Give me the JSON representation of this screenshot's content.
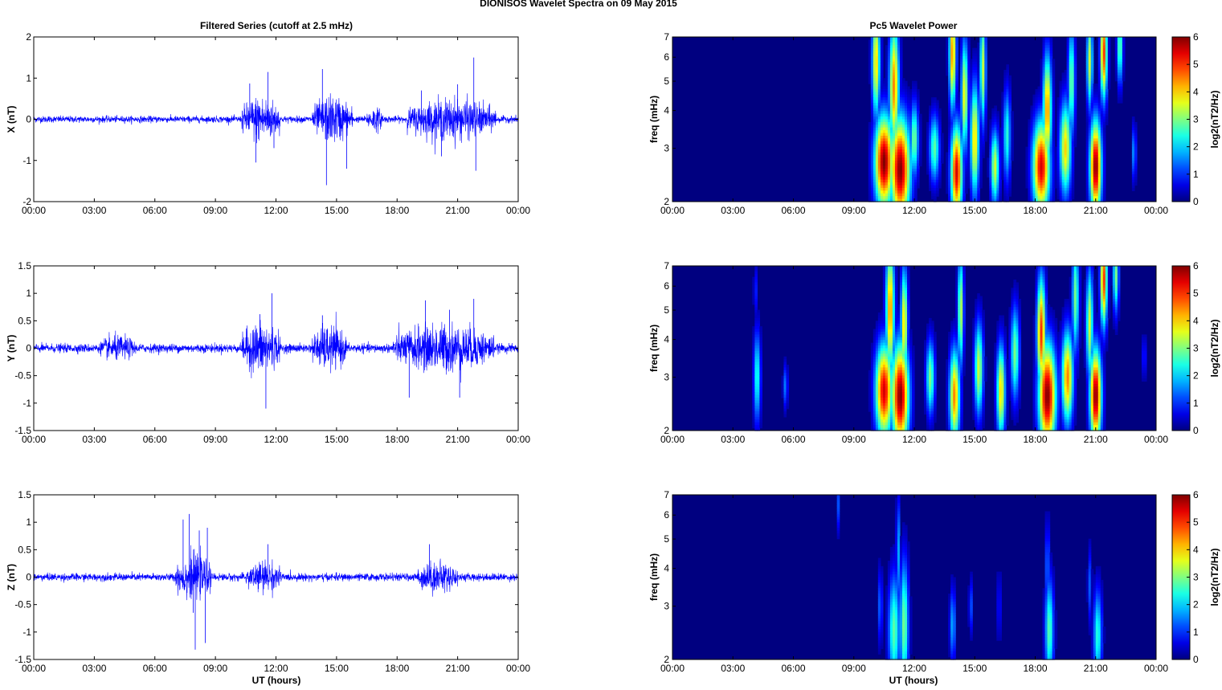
{
  "figure": {
    "title": "DIONISOS Wavelet Spectra on 09 May      2015"
  },
  "left_column": {
    "title": "Filtered Series (cutoff at 2.5 mHz)"
  },
  "right_column": {
    "title": "Pc5 Wavelet Power"
  },
  "xlabel": "UT (hours)",
  "x_tick_labels": [
    "00:00",
    "03:00",
    "06:00",
    "09:00",
    "12:00",
    "15:00",
    "18:00",
    "21:00",
    "00:00"
  ],
  "chart_data": [
    {
      "type": "line",
      "name": "series-x",
      "ylabel": "X (nT)",
      "xlim": [
        0,
        24
      ],
      "ylim": [
        -2,
        2
      ],
      "y_ticks": [
        "-2",
        "-1",
        "0",
        "1",
        "2"
      ],
      "y_tick_values": [
        -2,
        -1,
        0,
        1,
        2
      ],
      "color": "#0000ff",
      "base_amplitude": 0.07,
      "activity": [
        {
          "start": 10.3,
          "end": 12.2,
          "amp": 0.45
        },
        {
          "start": 13.8,
          "end": 15.8,
          "amp": 0.45
        },
        {
          "start": 16.5,
          "end": 17.3,
          "amp": 0.2
        },
        {
          "start": 18.5,
          "end": 22.9,
          "amp": 0.38
        }
      ],
      "peaks": [
        {
          "x": 10.7,
          "y": 0.87
        },
        {
          "x": 11.0,
          "y": -1.05
        },
        {
          "x": 11.6,
          "y": 1.15
        },
        {
          "x": 11.9,
          "y": -0.7
        },
        {
          "x": 14.3,
          "y": 1.22
        },
        {
          "x": 14.5,
          "y": -1.6
        },
        {
          "x": 15.5,
          "y": -1.2
        },
        {
          "x": 19.2,
          "y": 0.7
        },
        {
          "x": 20.2,
          "y": -0.9
        },
        {
          "x": 21.0,
          "y": 0.85
        },
        {
          "x": 21.8,
          "y": 1.5
        },
        {
          "x": 21.9,
          "y": -1.25
        }
      ]
    },
    {
      "type": "line",
      "name": "series-y",
      "ylabel": "Y (nT)",
      "xlim": [
        0,
        24
      ],
      "ylim": [
        -1.5,
        1.5
      ],
      "y_ticks": [
        "-1.5",
        "-1",
        "-0.5",
        "0",
        "0.5",
        "1",
        "1.5"
      ],
      "y_tick_values": [
        -1.5,
        -1,
        -0.5,
        0,
        0.5,
        1,
        1.5
      ],
      "color": "#0000ff",
      "base_amplitude": 0.07,
      "activity": [
        {
          "start": 3.3,
          "end": 5.0,
          "amp": 0.14
        },
        {
          "start": 10.3,
          "end": 12.2,
          "amp": 0.36
        },
        {
          "start": 13.8,
          "end": 15.5,
          "amp": 0.3
        },
        {
          "start": 17.8,
          "end": 22.8,
          "amp": 0.33
        }
      ],
      "peaks": [
        {
          "x": 11.2,
          "y": 0.62
        },
        {
          "x": 11.5,
          "y": -1.1
        },
        {
          "x": 11.8,
          "y": 1.0
        },
        {
          "x": 14.3,
          "y": 0.6
        },
        {
          "x": 18.6,
          "y": -0.9
        },
        {
          "x": 19.4,
          "y": 0.87
        },
        {
          "x": 20.6,
          "y": 0.7
        },
        {
          "x": 21.1,
          "y": -0.9
        },
        {
          "x": 21.8,
          "y": 0.9
        }
      ]
    },
    {
      "type": "line",
      "name": "series-z",
      "ylabel": "Z (nT)",
      "xlim": [
        0,
        24
      ],
      "ylim": [
        -1.5,
        1.5
      ],
      "y_ticks": [
        "-1.5",
        "-1",
        "-0.5",
        "0",
        "0.5",
        "1",
        "1.5"
      ],
      "y_tick_values": [
        -1.5,
        -1,
        -0.5,
        0,
        0.5,
        1,
        1.5
      ],
      "color": "#0000ff",
      "base_amplitude": 0.06,
      "activity": [
        {
          "start": 7.0,
          "end": 8.8,
          "amp": 0.3
        },
        {
          "start": 10.5,
          "end": 12.3,
          "amp": 0.2
        },
        {
          "start": 19.0,
          "end": 21.0,
          "amp": 0.2
        }
      ],
      "peaks": [
        {
          "x": 7.4,
          "y": 1.05
        },
        {
          "x": 7.7,
          "y": 1.15
        },
        {
          "x": 7.9,
          "y": -0.65
        },
        {
          "x": 8.0,
          "y": -1.32
        },
        {
          "x": 8.2,
          "y": 0.85
        },
        {
          "x": 8.5,
          "y": -1.2
        },
        {
          "x": 8.6,
          "y": 0.9
        },
        {
          "x": 11.6,
          "y": 0.6
        },
        {
          "x": 19.6,
          "y": 0.6
        }
      ]
    },
    {
      "type": "heatmap",
      "name": "wavelet-x",
      "ylabel": "freq (mHz)",
      "xlim": [
        0,
        24
      ],
      "ylim": [
        2,
        7
      ],
      "y_scale": "log",
      "y_ticks": [
        "2",
        "3",
        "4",
        "5",
        "6",
        "7"
      ],
      "y_tick_values": [
        2,
        3,
        4,
        5,
        6,
        7
      ],
      "colorbar": {
        "label": "log2(nT2/Hz)",
        "range": [
          0,
          6
        ],
        "ticks": [
          "0",
          "1",
          "2",
          "3",
          "4",
          "5",
          "6"
        ],
        "colormap": "jet"
      },
      "blobs": [
        {
          "t": 10.5,
          "f": 2.7,
          "sx": 0.33,
          "sy": 0.25,
          "v": 6.0
        },
        {
          "t": 11.3,
          "f": 2.55,
          "sx": 0.35,
          "sy": 0.28,
          "v": 6.0
        },
        {
          "t": 11.0,
          "f": 4.8,
          "sx": 0.17,
          "sy": 0.35,
          "v": 4.5
        },
        {
          "t": 10.1,
          "f": 5.8,
          "sx": 0.14,
          "sy": 0.3,
          "v": 4.0
        },
        {
          "t": 12.0,
          "f": 3.2,
          "sx": 0.15,
          "sy": 0.2,
          "v": 3.0
        },
        {
          "t": 13.0,
          "f": 3.0,
          "sx": 0.18,
          "sy": 0.18,
          "v": 2.8
        },
        {
          "t": 14.1,
          "f": 2.5,
          "sx": 0.2,
          "sy": 0.25,
          "v": 5.5
        },
        {
          "t": 13.9,
          "f": 6.2,
          "sx": 0.12,
          "sy": 0.3,
          "v": 4.5
        },
        {
          "t": 14.5,
          "f": 4.5,
          "sx": 0.12,
          "sy": 0.3,
          "v": 3.8
        },
        {
          "t": 15.0,
          "f": 3.2,
          "sx": 0.15,
          "sy": 0.3,
          "v": 4.0
        },
        {
          "t": 15.4,
          "f": 5.5,
          "sx": 0.1,
          "sy": 0.3,
          "v": 3.5
        },
        {
          "t": 16.0,
          "f": 2.6,
          "sx": 0.15,
          "sy": 0.2,
          "v": 3.5
        },
        {
          "t": 16.6,
          "f": 3.3,
          "sx": 0.13,
          "sy": 0.25,
          "v": 2.5
        },
        {
          "t": 18.3,
          "f": 2.6,
          "sx": 0.3,
          "sy": 0.25,
          "v": 5.5
        },
        {
          "t": 18.6,
          "f": 4.0,
          "sx": 0.15,
          "sy": 0.3,
          "v": 4.5
        },
        {
          "t": 19.5,
          "f": 3.0,
          "sx": 0.2,
          "sy": 0.25,
          "v": 4.0
        },
        {
          "t": 19.8,
          "f": 5.0,
          "sx": 0.12,
          "sy": 0.3,
          "v": 3.0
        },
        {
          "t": 21.0,
          "f": 2.6,
          "sx": 0.2,
          "sy": 0.25,
          "v": 6.0
        },
        {
          "t": 21.4,
          "f": 6.2,
          "sx": 0.12,
          "sy": 0.25,
          "v": 5.0
        },
        {
          "t": 20.7,
          "f": 5.8,
          "sx": 0.1,
          "sy": 0.25,
          "v": 3.5
        },
        {
          "t": 22.2,
          "f": 6.5,
          "sx": 0.1,
          "sy": 0.2,
          "v": 3.0
        },
        {
          "t": 22.9,
          "f": 2.9,
          "sx": 0.07,
          "sy": 0.15,
          "v": 1.8
        }
      ]
    },
    {
      "type": "heatmap",
      "name": "wavelet-y",
      "ylabel": "freq (mHz)",
      "xlim": [
        0,
        24
      ],
      "ylim": [
        2,
        7
      ],
      "y_scale": "log",
      "y_ticks": [
        "2",
        "3",
        "4",
        "5",
        "6",
        "7"
      ],
      "y_tick_values": [
        2,
        3,
        4,
        5,
        6,
        7
      ],
      "colorbar": {
        "label": "log2(nT2/Hz)",
        "range": [
          0,
          6
        ],
        "ticks": [
          "0",
          "1",
          "2",
          "3",
          "4",
          "5",
          "6"
        ],
        "colormap": "jet"
      },
      "blobs": [
        {
          "t": 4.2,
          "f": 3.0,
          "sx": 0.12,
          "sy": 0.25,
          "v": 2.5
        },
        {
          "t": 4.1,
          "f": 5.8,
          "sx": 0.05,
          "sy": 0.15,
          "v": 1.2
        },
        {
          "t": 5.6,
          "f": 2.8,
          "sx": 0.08,
          "sy": 0.12,
          "v": 1.5
        },
        {
          "t": 10.5,
          "f": 2.7,
          "sx": 0.3,
          "sy": 0.25,
          "v": 5.5
        },
        {
          "t": 11.3,
          "f": 2.6,
          "sx": 0.3,
          "sy": 0.28,
          "v": 6.0
        },
        {
          "t": 10.8,
          "f": 5.0,
          "sx": 0.15,
          "sy": 0.35,
          "v": 4.5
        },
        {
          "t": 11.5,
          "f": 4.5,
          "sx": 0.12,
          "sy": 0.3,
          "v": 4.0
        },
        {
          "t": 12.8,
          "f": 3.0,
          "sx": 0.15,
          "sy": 0.2,
          "v": 3.0
        },
        {
          "t": 14.0,
          "f": 2.6,
          "sx": 0.18,
          "sy": 0.25,
          "v": 4.5
        },
        {
          "t": 14.3,
          "f": 5.0,
          "sx": 0.1,
          "sy": 0.3,
          "v": 3.5
        },
        {
          "t": 15.2,
          "f": 3.2,
          "sx": 0.15,
          "sy": 0.25,
          "v": 3.5
        },
        {
          "t": 16.3,
          "f": 2.7,
          "sx": 0.15,
          "sy": 0.25,
          "v": 4.0
        },
        {
          "t": 17.0,
          "f": 3.6,
          "sx": 0.15,
          "sy": 0.25,
          "v": 3.0
        },
        {
          "t": 18.6,
          "f": 2.6,
          "sx": 0.3,
          "sy": 0.28,
          "v": 6.0
        },
        {
          "t": 18.3,
          "f": 4.2,
          "sx": 0.15,
          "sy": 0.3,
          "v": 5.0
        },
        {
          "t": 19.6,
          "f": 3.0,
          "sx": 0.2,
          "sy": 0.25,
          "v": 4.5
        },
        {
          "t": 20.0,
          "f": 5.5,
          "sx": 0.12,
          "sy": 0.3,
          "v": 3.0
        },
        {
          "t": 21.0,
          "f": 2.6,
          "sx": 0.2,
          "sy": 0.25,
          "v": 6.0
        },
        {
          "t": 21.4,
          "f": 6.3,
          "sx": 0.12,
          "sy": 0.25,
          "v": 5.0
        },
        {
          "t": 20.7,
          "f": 4.5,
          "sx": 0.12,
          "sy": 0.3,
          "v": 3.5
        },
        {
          "t": 22.0,
          "f": 6.5,
          "sx": 0.1,
          "sy": 0.2,
          "v": 3.0
        },
        {
          "t": 23.4,
          "f": 3.5,
          "sx": 0.06,
          "sy": 0.12,
          "v": 1.2
        }
      ]
    },
    {
      "type": "heatmap",
      "name": "wavelet-z",
      "ylabel": "freq (mHz)",
      "xlim": [
        0,
        24
      ],
      "ylim": [
        2,
        7
      ],
      "y_scale": "log",
      "y_ticks": [
        "2",
        "3",
        "4",
        "5",
        "6",
        "7"
      ],
      "y_tick_values": [
        2,
        3,
        4,
        5,
        6,
        7
      ],
      "colorbar": {
        "label": "log2(nT2/Hz)",
        "range": [
          0,
          6
        ],
        "ticks": [
          "0",
          "1",
          "2",
          "3",
          "4",
          "5",
          "6"
        ],
        "colormap": "jet"
      },
      "blobs": [
        {
          "t": 11.0,
          "f": 2.5,
          "sx": 0.2,
          "sy": 0.3,
          "v": 2.8
        },
        {
          "t": 11.5,
          "f": 2.6,
          "sx": 0.15,
          "sy": 0.35,
          "v": 3.0
        },
        {
          "t": 11.2,
          "f": 4.5,
          "sx": 0.07,
          "sy": 0.3,
          "v": 1.8
        },
        {
          "t": 8.2,
          "f": 6.5,
          "sx": 0.05,
          "sy": 0.15,
          "v": 1.3
        },
        {
          "t": 10.3,
          "f": 3.0,
          "sx": 0.08,
          "sy": 0.2,
          "v": 1.4
        },
        {
          "t": 13.9,
          "f": 2.6,
          "sx": 0.1,
          "sy": 0.2,
          "v": 1.8
        },
        {
          "t": 14.8,
          "f": 3.0,
          "sx": 0.07,
          "sy": 0.15,
          "v": 1.2
        },
        {
          "t": 16.2,
          "f": 3.0,
          "sx": 0.06,
          "sy": 0.2,
          "v": 1.0
        },
        {
          "t": 18.7,
          "f": 2.5,
          "sx": 0.15,
          "sy": 0.28,
          "v": 2.8
        },
        {
          "t": 18.6,
          "f": 4.0,
          "sx": 0.08,
          "sy": 0.25,
          "v": 1.5
        },
        {
          "t": 21.1,
          "f": 2.4,
          "sx": 0.15,
          "sy": 0.25,
          "v": 2.5
        },
        {
          "t": 20.7,
          "f": 3.5,
          "sx": 0.07,
          "sy": 0.2,
          "v": 1.3
        }
      ]
    }
  ]
}
